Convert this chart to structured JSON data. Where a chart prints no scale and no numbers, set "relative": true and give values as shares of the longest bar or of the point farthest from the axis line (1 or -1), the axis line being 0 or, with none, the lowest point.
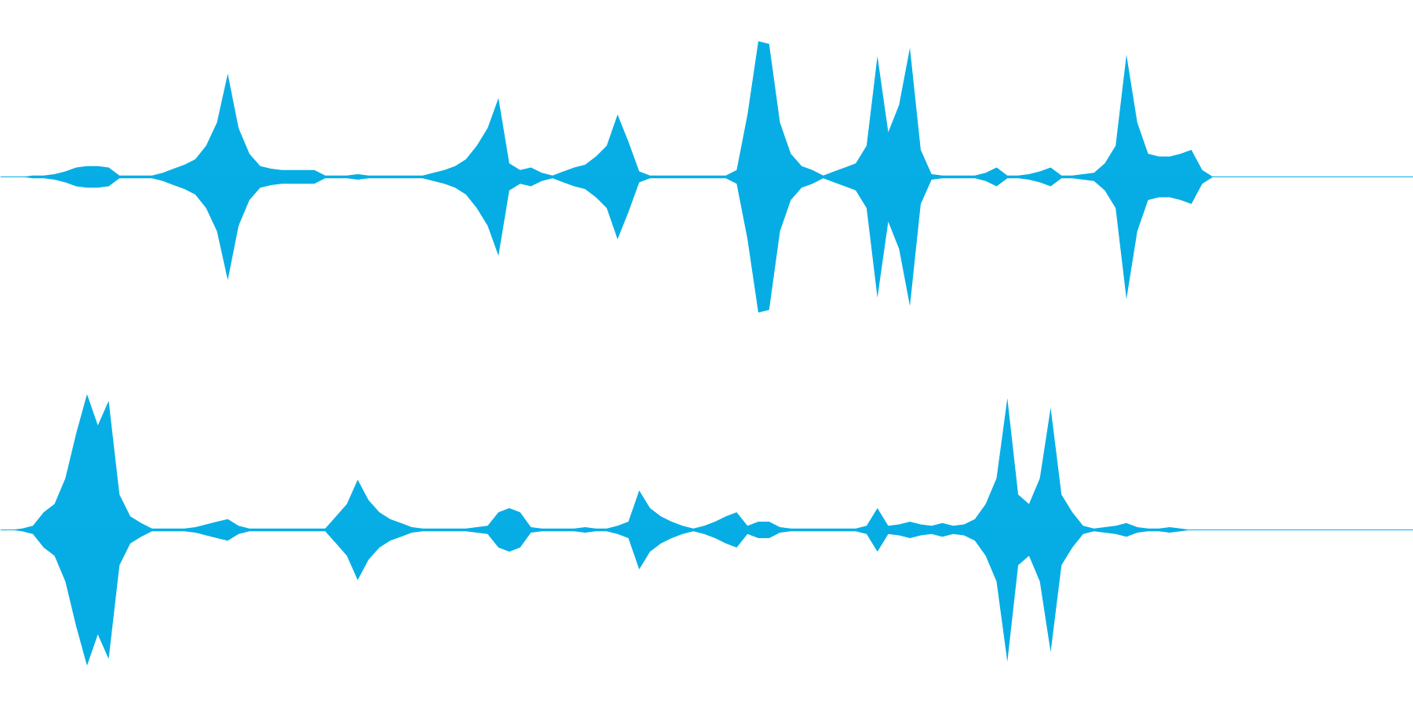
{
  "chart_data": [
    {
      "type": "area",
      "relative": true,
      "grid": false,
      "tick_labels": false,
      "categories": [
        null,
        null,
        null,
        null,
        null,
        null,
        null,
        null,
        null,
        null,
        null,
        null,
        null,
        null,
        null,
        null,
        null,
        null,
        null,
        null,
        null,
        null,
        null,
        null,
        null,
        null,
        null,
        null,
        null,
        null,
        null,
        null,
        null,
        null,
        null,
        null,
        null,
        null,
        null,
        null,
        null,
        null,
        null,
        null,
        null,
        null,
        null,
        null,
        null,
        null,
        null,
        null,
        null,
        null,
        null,
        null,
        null,
        null,
        null,
        null,
        null,
        null,
        null,
        null,
        null,
        null,
        null,
        null,
        null,
        null,
        null,
        null,
        null,
        null,
        null,
        null,
        null,
        null,
        null,
        null,
        null,
        null,
        null,
        null,
        null,
        null,
        null,
        null,
        null,
        null,
        null,
        null,
        null,
        null,
        null,
        null,
        null,
        null,
        null,
        null,
        null,
        null,
        null,
        null,
        null,
        null,
        null,
        null,
        null,
        null,
        null,
        null,
        null,
        null,
        null,
        null,
        null,
        null,
        null,
        null,
        null,
        null,
        null,
        null,
        null,
        null,
        null,
        null,
        null,
        null,
        null
      ],
      "series": [
        {
          "color": "#07aee5",
          "values": [
            0,
            0,
            0,
            0.01,
            0.01,
            0.02,
            0.04,
            0.07,
            0.08,
            0.08,
            0.07,
            0.01,
            0.01,
            0.01,
            0.01,
            0.03,
            0.06,
            0.09,
            0.13,
            0.23,
            0.4,
            0.76,
            0.36,
            0.17,
            0.08,
            0.06,
            0.05,
            0.05,
            0.05,
            0.05,
            0.01,
            0.01,
            0.01,
            0.02,
            0.01,
            0.01,
            0.01,
            0.01,
            0.01,
            0.01,
            0.03,
            0.05,
            0.08,
            0.13,
            0.23,
            0.36,
            0.58,
            0.1,
            0.05,
            0.07,
            0.03,
            0.01,
            0.04,
            0.07,
            0.09,
            0.15,
            0.23,
            0.46,
            0.26,
            0.04,
            0.01,
            0.01,
            0.01,
            0.01,
            0.01,
            0.01,
            0.01,
            0.01,
            0.05,
            0.46,
            1,
            0.98,
            0.4,
            0.17,
            0.08,
            0.05,
            0.01,
            0.04,
            0.07,
            0.1,
            0.23,
            0.89,
            0.33,
            0.53,
            0.95,
            0.2,
            0.02,
            0.01,
            0.01,
            0.01,
            0.01,
            0.03,
            0.07,
            0.01,
            0.01,
            0.02,
            0.04,
            0.07,
            0.01,
            0.01,
            0.02,
            0.03,
            0.1,
            0.23,
            0.9,
            0.4,
            0.17,
            0.15,
            0.15,
            0.17,
            0.2,
            0.05,
            0,
            0,
            0,
            0,
            0,
            0,
            0,
            0,
            0,
            0,
            0,
            0,
            0,
            0,
            0,
            0,
            0,
            0,
            0
          ]
        },
        {
          "color": "#06ade4",
          "values": [
            0,
            0,
            0,
            -0.01,
            -0.01,
            -0.02,
            -0.04,
            -0.07,
            -0.08,
            -0.08,
            -0.07,
            -0.01,
            -0.01,
            -0.01,
            -0.01,
            -0.03,
            -0.06,
            -0.09,
            -0.13,
            -0.23,
            -0.4,
            -0.76,
            -0.36,
            -0.17,
            -0.08,
            -0.06,
            -0.05,
            -0.05,
            -0.05,
            -0.05,
            -0.01,
            -0.01,
            -0.01,
            -0.02,
            -0.01,
            -0.01,
            -0.01,
            -0.01,
            -0.01,
            -0.01,
            -0.03,
            -0.05,
            -0.08,
            -0.13,
            -0.23,
            -0.36,
            -0.58,
            -0.1,
            -0.05,
            -0.07,
            -0.03,
            -0.01,
            -0.04,
            -0.07,
            -0.09,
            -0.15,
            -0.23,
            -0.46,
            -0.26,
            -0.04,
            -0.01,
            -0.01,
            -0.01,
            -0.01,
            -0.01,
            -0.01,
            -0.01,
            -0.01,
            -0.05,
            -0.46,
            -1,
            -0.98,
            -0.4,
            -0.17,
            -0.08,
            -0.05,
            -0.01,
            -0.04,
            -0.07,
            -0.1,
            -0.23,
            -0.89,
            -0.33,
            -0.53,
            -0.95,
            -0.2,
            -0.02,
            -0.01,
            -0.01,
            -0.01,
            -0.01,
            -0.03,
            -0.07,
            -0.01,
            -0.01,
            -0.02,
            -0.04,
            -0.07,
            -0.01,
            -0.01,
            -0.02,
            -0.03,
            -0.1,
            -0.23,
            -0.9,
            -0.4,
            -0.17,
            -0.15,
            -0.15,
            -0.17,
            -0.2,
            -0.05,
            0,
            0,
            0,
            0,
            0,
            0,
            0,
            0,
            0,
            0,
            0,
            0,
            0,
            0,
            0,
            0,
            0,
            0,
            0
          ]
        }
      ]
    },
    {
      "type": "area",
      "relative": true,
      "grid": false,
      "tick_labels": false,
      "categories": [
        null,
        null,
        null,
        null,
        null,
        null,
        null,
        null,
        null,
        null,
        null,
        null,
        null,
        null,
        null,
        null,
        null,
        null,
        null,
        null,
        null,
        null,
        null,
        null,
        null,
        null,
        null,
        null,
        null,
        null,
        null,
        null,
        null,
        null,
        null,
        null,
        null,
        null,
        null,
        null,
        null,
        null,
        null,
        null,
        null,
        null,
        null,
        null,
        null,
        null,
        null,
        null,
        null,
        null,
        null,
        null,
        null,
        null,
        null,
        null,
        null,
        null,
        null,
        null,
        null,
        null,
        null,
        null,
        null,
        null,
        null,
        null,
        null,
        null,
        null,
        null,
        null,
        null,
        null,
        null,
        null,
        null,
        null,
        null,
        null,
        null,
        null,
        null,
        null,
        null,
        null,
        null,
        null,
        null,
        null,
        null,
        null,
        null,
        null,
        null,
        null,
        null,
        null,
        null,
        null,
        null,
        null,
        null,
        null,
        null,
        null,
        null,
        null,
        null,
        null,
        null,
        null,
        null,
        null,
        null,
        null,
        null,
        null,
        null,
        null,
        null,
        null,
        null,
        null,
        null,
        null
      ],
      "series": [
        {
          "color": "#07aee5",
          "values": [
            0,
            0,
            0.01,
            0.03,
            0.13,
            0.19,
            0.38,
            0.71,
            1,
            0.77,
            0.95,
            0.26,
            0.1,
            0.05,
            0.01,
            0.01,
            0.01,
            0.01,
            0.02,
            0.04,
            0.06,
            0.08,
            0.03,
            0.01,
            0.01,
            0.01,
            0.01,
            0.01,
            0.01,
            0.01,
            0.01,
            0.1,
            0.19,
            0.37,
            0.22,
            0.13,
            0.08,
            0.05,
            0.02,
            0.01,
            0.01,
            0.01,
            0.01,
            0.01,
            0.02,
            0.03,
            0.13,
            0.16,
            0.13,
            0.02,
            0.01,
            0.01,
            0.01,
            0.01,
            0.02,
            0.01,
            0.01,
            0.03,
            0.06,
            0.29,
            0.16,
            0.1,
            0.06,
            0.03,
            0.01,
            0.03,
            0.06,
            0.1,
            0.13,
            0.03,
            0.06,
            0.06,
            0.02,
            0.01,
            0.01,
            0.01,
            0.01,
            0.01,
            0.01,
            0.01,
            0.03,
            0.16,
            0.03,
            0.04,
            0.06,
            0.04,
            0.03,
            0.05,
            0.03,
            0.04,
            0.08,
            0.19,
            0.38,
            0.97,
            0.26,
            0.19,
            0.38,
            0.9,
            0.26,
            0.13,
            0.03,
            0.01,
            0.02,
            0.03,
            0.05,
            0.02,
            0.01,
            0.01,
            0.02,
            0.01,
            0,
            0,
            0,
            0,
            0,
            0,
            0,
            0,
            0,
            0,
            0,
            0,
            0,
            0,
            0,
            0,
            0,
            0,
            0,
            0,
            0
          ]
        },
        {
          "color": "#06ade4",
          "values": [
            0,
            0,
            -0.01,
            -0.03,
            -0.13,
            -0.19,
            -0.38,
            -0.71,
            -1,
            -0.77,
            -0.95,
            -0.26,
            -0.1,
            -0.05,
            -0.01,
            -0.01,
            -0.01,
            -0.01,
            -0.02,
            -0.04,
            -0.06,
            -0.08,
            -0.03,
            -0.01,
            -0.01,
            -0.01,
            -0.01,
            -0.01,
            -0.01,
            -0.01,
            -0.01,
            -0.1,
            -0.19,
            -0.37,
            -0.22,
            -0.13,
            -0.08,
            -0.05,
            -0.02,
            -0.01,
            -0.01,
            -0.01,
            -0.01,
            -0.01,
            -0.02,
            -0.03,
            -0.13,
            -0.16,
            -0.13,
            -0.02,
            -0.01,
            -0.01,
            -0.01,
            -0.01,
            -0.02,
            -0.01,
            -0.01,
            -0.03,
            -0.06,
            -0.29,
            -0.16,
            -0.1,
            -0.06,
            -0.03,
            -0.01,
            -0.03,
            -0.06,
            -0.1,
            -0.13,
            -0.03,
            -0.06,
            -0.06,
            -0.02,
            -0.01,
            -0.01,
            -0.01,
            -0.01,
            -0.01,
            -0.01,
            -0.01,
            -0.03,
            -0.16,
            -0.03,
            -0.04,
            -0.06,
            -0.04,
            -0.03,
            -0.05,
            -0.03,
            -0.04,
            -0.08,
            -0.19,
            -0.38,
            -0.97,
            -0.26,
            -0.19,
            -0.38,
            -0.9,
            -0.26,
            -0.13,
            -0.03,
            -0.01,
            -0.02,
            -0.03,
            -0.05,
            -0.02,
            -0.01,
            -0.01,
            -0.02,
            -0.01,
            0,
            0,
            0,
            0,
            0,
            0,
            0,
            0,
            0,
            0,
            0,
            0,
            0,
            0,
            0,
            0,
            0,
            0,
            0,
            0,
            0
          ]
        }
      ]
    }
  ]
}
